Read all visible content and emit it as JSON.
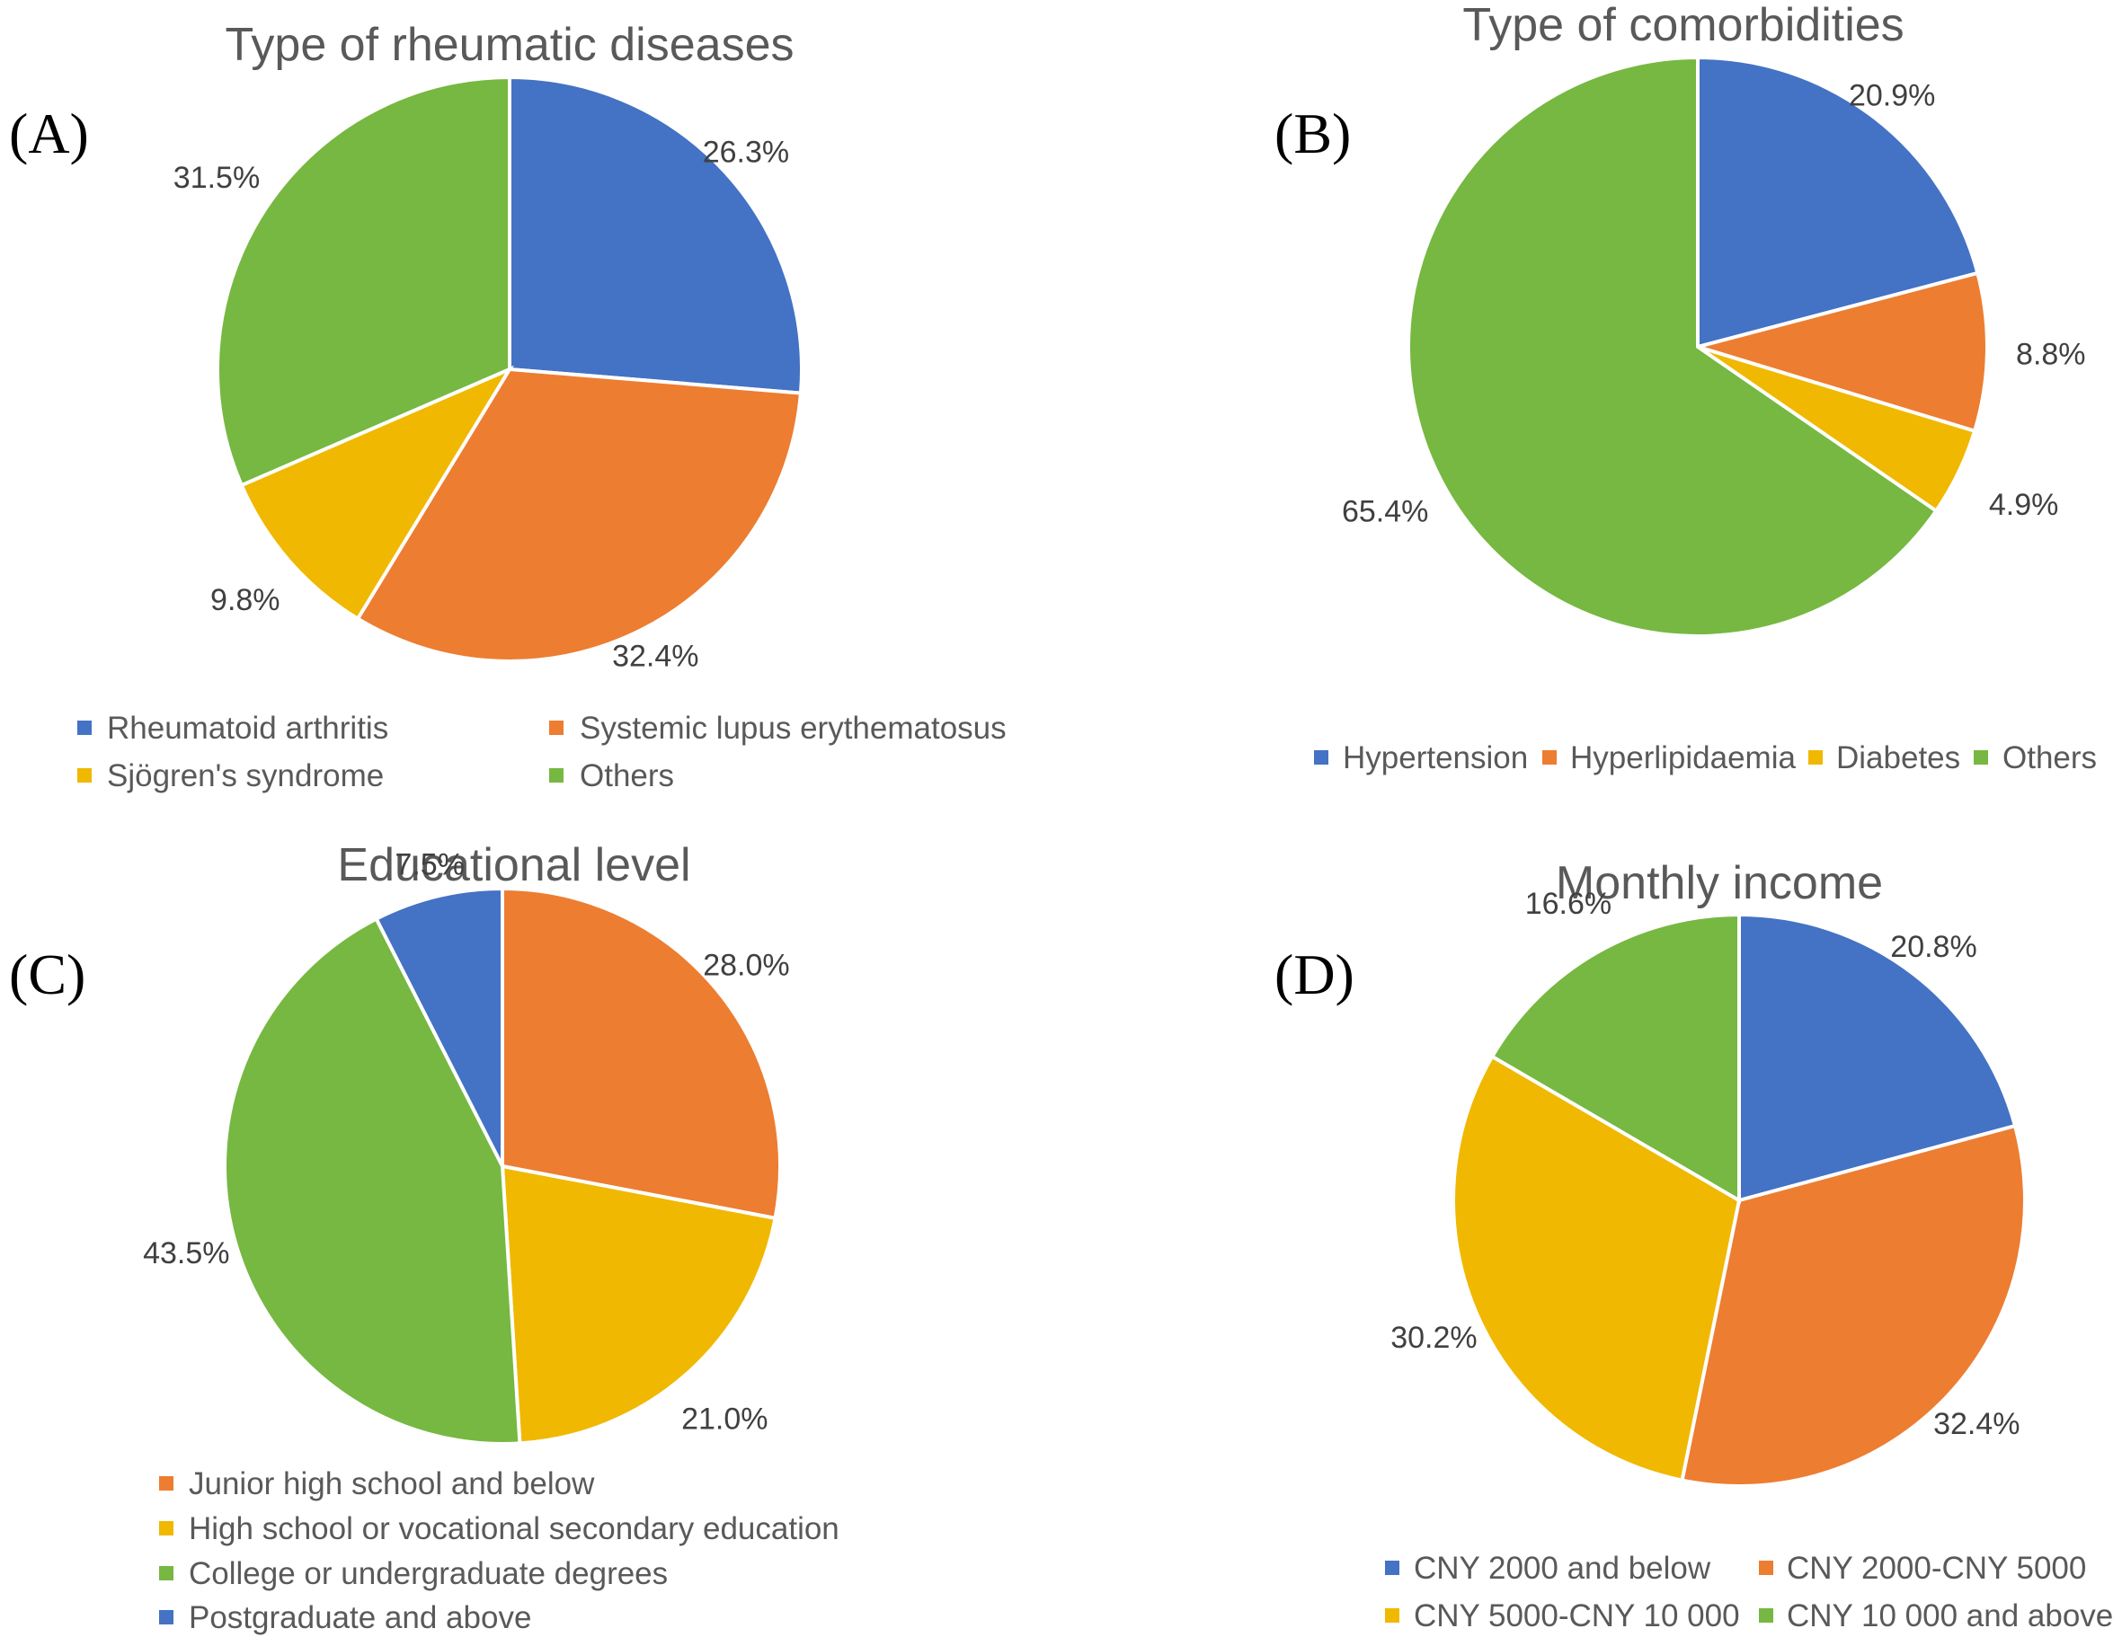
{
  "colors": {
    "blue": "#4472C4",
    "orange": "#ED7D31",
    "yellow": "#F0B800",
    "green": "#76B841"
  },
  "chart_data": [
    {
      "type": "pie",
      "panel": "(A)",
      "title": "Type of rheumatic diseases",
      "slices": [
        {
          "name": "Rheumatoid arthritis",
          "value": 26.3,
          "label": "26.3%",
          "color": "#4472C4"
        },
        {
          "name": "Systemic lupus erythematosus",
          "value": 32.4,
          "label": "32.4%",
          "color": "#ED7D31"
        },
        {
          "name": "Sjögren's syndrome",
          "value": 9.8,
          "label": "9.8%",
          "color": "#F0B800"
        },
        {
          "name": "Others",
          "value": 31.5,
          "label": "31.5%",
          "color": "#76B841"
        }
      ],
      "legend": [
        "Rheumatoid arthritis",
        "Systemic lupus erythematosus",
        "Sjögren's syndrome",
        "Others"
      ],
      "legend_position": "bottom"
    },
    {
      "type": "pie",
      "panel": "(B)",
      "title": "Type of comorbidities",
      "slices": [
        {
          "name": "Hypertension",
          "value": 20.9,
          "label": "20.9%",
          "color": "#4472C4"
        },
        {
          "name": "Hyperlipidaemia",
          "value": 8.8,
          "label": "8.8%",
          "color": "#ED7D31"
        },
        {
          "name": "Diabetes",
          "value": 4.9,
          "label": "4.9%",
          "color": "#F0B800"
        },
        {
          "name": "Others",
          "value": 65.4,
          "label": "65.4%",
          "color": "#76B841"
        }
      ],
      "legend": [
        "Hypertension",
        "Hyperlipidaemia",
        "Diabetes",
        "Others"
      ],
      "legend_position": "bottom"
    },
    {
      "type": "pie",
      "panel": "(C)",
      "title": "Educational level",
      "slices": [
        {
          "name": "Junior high school and below",
          "value": 28.0,
          "label": "28.0%",
          "color": "#ED7D31"
        },
        {
          "name": "High school or vocational secondary education",
          "value": 21.0,
          "label": "21.0%",
          "color": "#F0B800"
        },
        {
          "name": "College or undergraduate degrees",
          "value": 43.5,
          "label": "43.5%",
          "color": "#76B841"
        },
        {
          "name": "Postgraduate and above",
          "value": 7.5,
          "label": "7.5%",
          "color": "#4472C4"
        }
      ],
      "legend": [
        "Junior high school and below",
        "High school or vocational secondary education",
        "College or undergraduate degrees",
        "Postgraduate and above"
      ],
      "legend_position": "bottom"
    },
    {
      "type": "pie",
      "panel": "(D)",
      "title": "Monthly income",
      "slices": [
        {
          "name": "CNY 2000 and below",
          "value": 20.8,
          "label": "20.8%",
          "color": "#4472C4"
        },
        {
          "name": "CNY 2000-CNY 5000",
          "value": 32.4,
          "label": "32.4%",
          "color": "#ED7D31"
        },
        {
          "name": "CNY 5000-CNY 10 000",
          "value": 30.2,
          "label": "30.2%",
          "color": "#F0B800"
        },
        {
          "name": "CNY 10 000 and above",
          "value": 16.6,
          "label": "16.6%",
          "color": "#76B841"
        }
      ],
      "legend": [
        "CNY 2000 and below",
        "CNY 2000-CNY 5000",
        "CNY 5000-CNY 10 000",
        "CNY 10 000 and above"
      ],
      "legend_position": "bottom"
    }
  ]
}
